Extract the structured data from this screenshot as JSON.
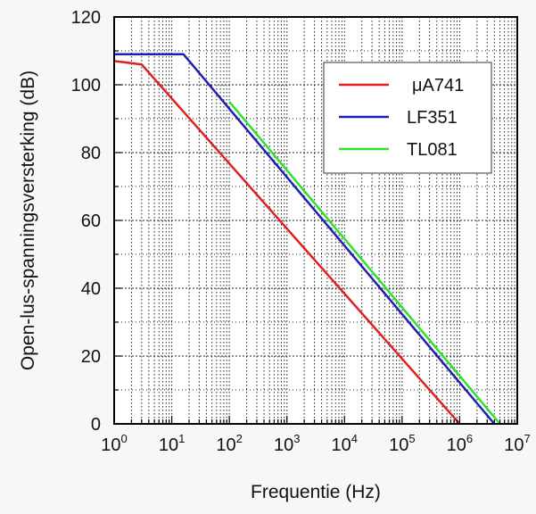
{
  "chart_data": {
    "type": "line",
    "xscale": "log",
    "xlim": [
      1,
      10000000
    ],
    "ylim": [
      0,
      120
    ],
    "xlabel": "Frequentie (Hz)",
    "ylabel": "Open-lus-spanningsversterking (dB)",
    "x_tick_labels": [
      {
        "base": "10",
        "exp": "0"
      },
      {
        "base": "10",
        "exp": "1"
      },
      {
        "base": "10",
        "exp": "2"
      },
      {
        "base": "10",
        "exp": "3"
      },
      {
        "base": "10",
        "exp": "4"
      },
      {
        "base": "10",
        "exp": "5"
      },
      {
        "base": "10",
        "exp": "6"
      },
      {
        "base": "10",
        "exp": "7"
      }
    ],
    "y_tick_labels": [
      "0",
      "20",
      "40",
      "60",
      "80",
      "100",
      "120"
    ],
    "grid": true,
    "legend_position": "top-right",
    "series": [
      {
        "name": "μA741",
        "color": "#e02020",
        "points": [
          [
            1,
            107
          ],
          [
            3,
            106
          ],
          [
            1000000,
            0
          ]
        ]
      },
      {
        "name": "LF351",
        "color": "#2020b0",
        "points": [
          [
            1,
            109
          ],
          [
            16,
            109
          ],
          [
            4000000,
            0
          ]
        ]
      },
      {
        "name": "TL081",
        "color": "#30e030",
        "points": [
          [
            100,
            95
          ],
          [
            5000000,
            0
          ]
        ]
      }
    ]
  }
}
